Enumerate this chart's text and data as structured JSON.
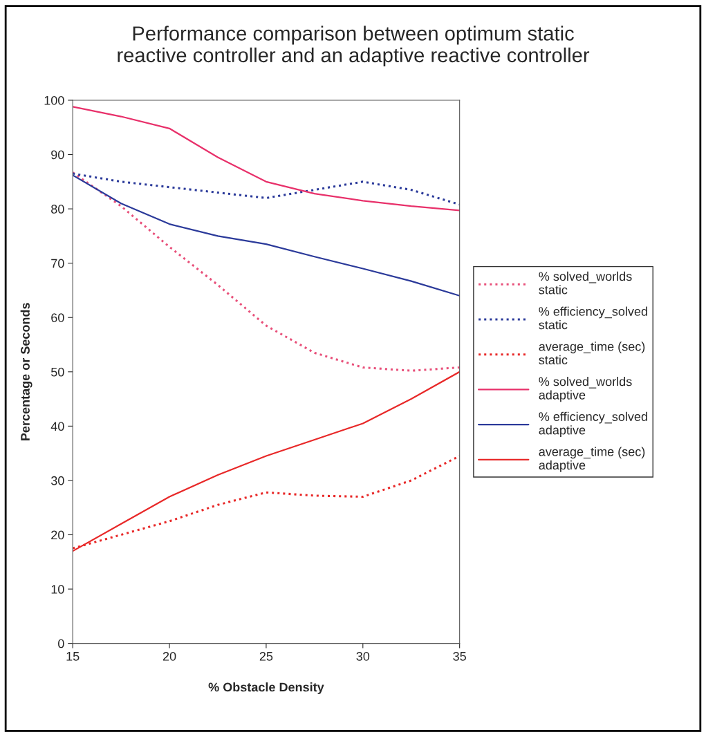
{
  "chart_data": {
    "type": "line",
    "title": "Performance comparison between optimum static\nreactive controller and an adaptive reactive controller",
    "xlabel": "% Obstacle Density",
    "ylabel": "Percentage or Seconds",
    "x": [
      15,
      17.5,
      20,
      22.5,
      25,
      27.5,
      30,
      32.5,
      35
    ],
    "xlim": [
      15,
      35
    ],
    "xticks": [
      15,
      20,
      25,
      30,
      35
    ],
    "ylim": [
      0,
      100
    ],
    "yticks": [
      0,
      10,
      20,
      30,
      40,
      50,
      60,
      70,
      80,
      90,
      100
    ],
    "grid": false,
    "legend": "right",
    "marker": "none",
    "series": [
      {
        "name": "% solved_worlds\nstatic",
        "color": "#e8507a",
        "line_style": "dotted",
        "values": [
          86.7,
          80.5,
          73,
          66,
          58.5,
          53.5,
          50.8,
          50.2,
          50.8
        ]
      },
      {
        "name": "% efficiency_solved\nstatic",
        "color": "#2b3a9a",
        "line_style": "dotted",
        "values": [
          86.5,
          85,
          84,
          83,
          82,
          83.5,
          85,
          83.5,
          80.8
        ]
      },
      {
        "name": "average_time (sec)\nstatic",
        "color": "#e82828",
        "line_style": "dotted",
        "values": [
          17.5,
          20,
          22.5,
          25.5,
          27.8,
          27.2,
          27,
          30,
          34.5
        ]
      },
      {
        "name": "% solved_worlds\nadaptive",
        "color": "#e8306a",
        "line_style": "solid",
        "values": [
          98.8,
          97,
          94.8,
          89.5,
          85,
          82.8,
          81.5,
          80.5,
          79.7
        ]
      },
      {
        "name": "% efficiency_solved\nadaptive",
        "color": "#2b3a9a",
        "line_style": "solid",
        "values": [
          86.2,
          81,
          77.2,
          75,
          73.5,
          71.2,
          69,
          66.7,
          64
        ]
      },
      {
        "name": "average_time (sec)\nadaptive",
        "color": "#e82828",
        "line_style": "solid",
        "values": [
          17,
          22,
          27,
          31,
          34.5,
          37.5,
          40.5,
          45,
          50
        ]
      }
    ]
  }
}
